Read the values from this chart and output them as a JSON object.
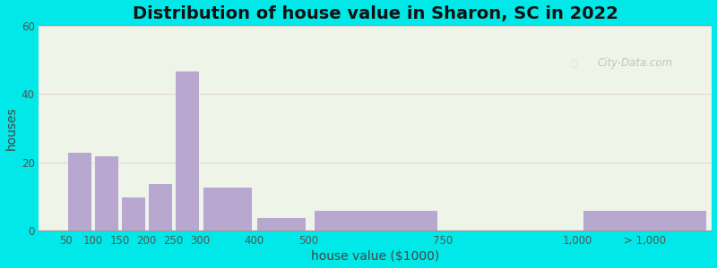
{
  "title": "Distribution of house value in Sharon, SC in 2022",
  "xlabel": "house value ($1000)",
  "ylabel": "houses",
  "bar_edges": [
    0,
    50,
    100,
    150,
    200,
    250,
    300,
    400,
    500,
    750,
    1000,
    1250
  ],
  "bar_values": [
    0,
    23,
    22,
    10,
    14,
    47,
    13,
    4,
    6,
    0,
    6
  ],
  "xtick_positions": [
    50,
    100,
    150,
    200,
    250,
    300,
    400,
    500,
    750,
    1000,
    1125
  ],
  "xtick_labels": [
    "50",
    "100",
    "150",
    "200",
    "250",
    "300",
    "400",
    "500",
    "750",
    "1,000",
    "> 1,000"
  ],
  "bar_color": "#b8a8d0",
  "bar_edge_color": "#ffffff",
  "ylim": [
    0,
    60
  ],
  "yticks": [
    0,
    20,
    40,
    60
  ],
  "xlim": [
    0,
    1250
  ],
  "bg_outer": "#00e8e8",
  "bg_plot": "#eef5e8",
  "title_fontsize": 14,
  "axis_label_fontsize": 10,
  "tick_fontsize": 8.5,
  "watermark_text": "City-Data.com"
}
